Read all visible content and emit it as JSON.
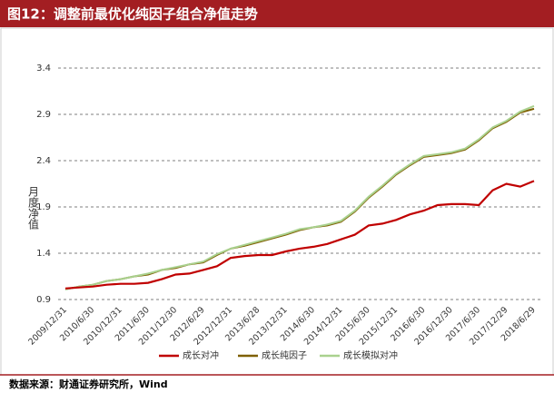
{
  "chart_data": {
    "type": "line",
    "title": "图12：调整前最优化纯因子组合净值走势",
    "y_label": "月度净值",
    "categories": [
      "2009/12/31",
      null,
      "2010/6/30",
      null,
      "2010/12/31",
      null,
      "2011/6/30",
      null,
      "2011/12/30",
      null,
      "2012/6/29",
      null,
      "2012/12/31",
      null,
      "2013/6/28",
      null,
      "2013/12/31",
      null,
      "2014/6/30",
      null,
      "2014/12/31",
      null,
      "2015/6/30",
      null,
      "2015/12/31",
      null,
      "2016/6/30",
      null,
      "2016/12/30",
      null,
      "2017/6/30",
      null,
      "2017/12/29",
      null,
      "2018/6/29"
    ],
    "series": [
      {
        "name": "成长对冲",
        "color": "#c00000",
        "values": [
          1.02,
          1.03,
          1.04,
          1.06,
          1.07,
          1.07,
          1.08,
          1.12,
          1.17,
          1.18,
          1.22,
          1.26,
          1.35,
          1.37,
          1.38,
          1.38,
          1.42,
          1.45,
          1.47,
          1.5,
          1.55,
          1.6,
          1.7,
          1.72,
          1.76,
          1.82,
          1.86,
          1.92,
          1.93,
          1.93,
          1.92,
          2.08,
          2.15,
          2.12,
          2.18
        ]
      },
      {
        "name": "成长纯因子",
        "color": "#7f6000",
        "values": [
          1.01,
          1.04,
          1.06,
          1.1,
          1.12,
          1.15,
          1.17,
          1.22,
          1.24,
          1.28,
          1.3,
          1.38,
          1.45,
          1.48,
          1.52,
          1.56,
          1.6,
          1.65,
          1.68,
          1.7,
          1.74,
          1.85,
          2.0,
          2.12,
          2.25,
          2.35,
          2.44,
          2.46,
          2.48,
          2.52,
          2.62,
          2.75,
          2.82,
          2.92,
          2.96
        ]
      },
      {
        "name": "成长模拟对冲",
        "color": "#a9d18e",
        "values": [
          1.01,
          1.04,
          1.06,
          1.1,
          1.12,
          1.15,
          1.18,
          1.22,
          1.25,
          1.28,
          1.31,
          1.39,
          1.45,
          1.49,
          1.53,
          1.57,
          1.61,
          1.66,
          1.68,
          1.71,
          1.75,
          1.86,
          2.01,
          2.13,
          2.26,
          2.36,
          2.45,
          2.47,
          2.49,
          2.53,
          2.63,
          2.76,
          2.83,
          2.93,
          2.99
        ]
      }
    ],
    "ylim": [
      0.9,
      3.4
    ],
    "yticks": [
      0.9,
      1.4,
      1.9,
      2.4,
      2.9,
      3.4
    ],
    "grid": true
  },
  "source": "数据来源：财通证券研究所，Wind"
}
